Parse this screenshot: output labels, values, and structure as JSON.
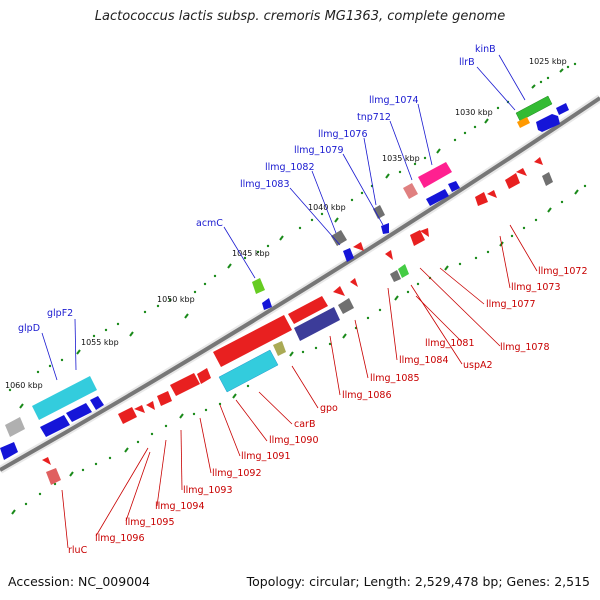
{
  "title": "Lactococcus lactis subsp. cremoris MG1363, complete genome",
  "footer": {
    "accession": "Accession: NC_009004",
    "topology": "Topology: circular; Length: 2,529,478 bp; Genes: 2,515"
  },
  "scale_labels": [
    "1025 kbp",
    "1030 kbp",
    "1035 kbp",
    "1040 kbp",
    "1045 kbp",
    "1050 kbp",
    "1055 kbp",
    "1060 kbp"
  ],
  "gene_labels_top": [
    "kinB",
    "llrB",
    "llmg_1074",
    "tnp712",
    "llmg_1076",
    "llmg_1079",
    "llmg_1082",
    "llmg_1083",
    "acmC",
    "glpF2",
    "glpD"
  ],
  "gene_labels_bottom": [
    "llmg_1072",
    "llmg_1073",
    "llmg_1077",
    "llmg_1078",
    "llmg_1081",
    "uspA2",
    "llmg_1084",
    "llmg_1085",
    "llmg_1086",
    "gpo",
    "carB",
    "llmg_1090",
    "llmg_1091",
    "llmg_1092",
    "llmg_1093",
    "llmg_1094",
    "llmg_1095",
    "llmg_1096",
    "rluC"
  ],
  "colors": {
    "label_top": "#1a1ad0",
    "label_bottom": "#c80000",
    "backbone": "#808080",
    "tick": "#1a8a1a"
  }
}
